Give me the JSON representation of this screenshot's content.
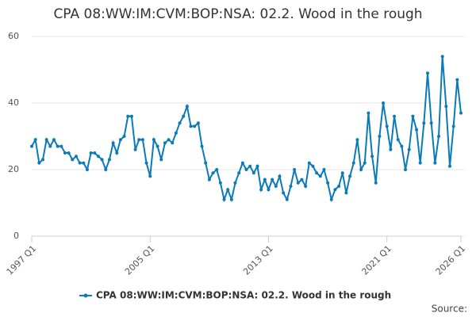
{
  "chart_data": {
    "type": "line",
    "title": "CPA 08:WW:IM:CVM:BOP:NSA: 02.2. Wood in the rough",
    "source": "Source:",
    "categories": [
      "1997 Q1",
      null,
      null,
      null,
      null,
      null,
      null,
      null,
      null,
      null,
      null,
      null,
      null,
      null,
      null,
      null,
      null,
      null,
      null,
      null,
      null,
      null,
      null,
      null,
      null,
      null,
      null,
      null,
      null,
      null,
      null,
      null,
      "2005 Q1",
      null,
      null,
      null,
      null,
      null,
      null,
      null,
      null,
      null,
      null,
      null,
      null,
      null,
      null,
      null,
      null,
      null,
      null,
      null,
      null,
      null,
      null,
      null,
      null,
      null,
      null,
      null,
      null,
      null,
      null,
      null,
      "2013 Q1",
      null,
      null,
      null,
      null,
      null,
      null,
      null,
      null,
      null,
      null,
      null,
      null,
      null,
      null,
      null,
      null,
      null,
      null,
      null,
      null,
      null,
      null,
      null,
      null,
      null,
      null,
      null,
      null,
      null,
      null,
      null,
      "2021 Q1",
      null,
      null,
      null,
      null,
      null,
      null,
      null,
      null,
      null,
      null,
      null,
      null,
      null,
      null,
      null,
      null,
      null,
      null,
      null,
      "2026 Q1"
    ],
    "series": [
      {
        "name": "CPA 08:WW:IM:CVM:BOP:NSA: 02.2. Wood in the rough",
        "color": "#0a7ab8",
        "values": [
          27,
          29,
          22,
          23,
          29,
          27,
          29,
          27,
          27,
          25,
          25,
          23,
          24,
          22,
          22,
          20,
          25,
          25,
          24,
          23,
          20,
          23,
          28,
          25,
          29,
          30,
          36,
          36,
          26,
          29,
          29,
          22,
          18,
          29,
          27,
          23,
          28,
          29,
          28,
          31,
          34,
          36,
          39,
          33,
          33,
          34,
          27,
          22,
          17,
          19,
          20,
          16,
          11,
          14,
          11,
          16,
          19,
          22,
          20,
          21,
          19,
          21,
          14,
          17,
          14,
          17,
          15,
          18,
          13,
          11,
          15,
          20,
          16,
          17,
          15,
          22,
          21,
          19,
          18,
          20,
          16,
          11,
          14,
          15,
          19,
          13,
          18,
          22,
          29,
          20,
          22,
          37,
          24,
          16,
          30,
          40,
          33,
          26,
          36,
          29,
          27,
          20,
          26,
          36,
          32,
          22,
          34,
          49,
          34,
          22,
          30,
          54,
          39,
          21,
          33,
          47,
          37
        ]
      }
    ],
    "ylim": [
      0,
      60
    ],
    "yticks": [
      0,
      20,
      40,
      60
    ],
    "grid": true
  }
}
